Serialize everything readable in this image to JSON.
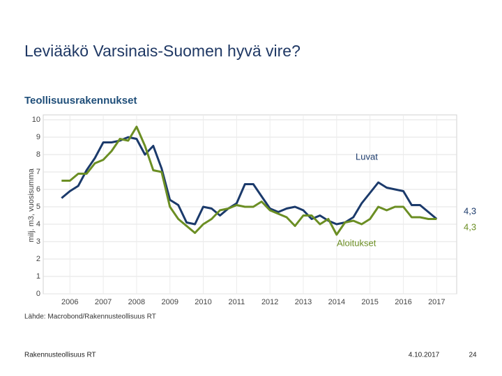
{
  "slide": {
    "title": "Leviääkö Varsinais-Suomen hyvä vire?",
    "footer_left": "Rakennusteollisuus RT",
    "footer_date": "4.10.2017",
    "page_number": "24"
  },
  "chart_data": {
    "type": "line",
    "title": "Teollisuusrakennukset",
    "y_label": "milj. m3, vuosisumma",
    "source": "Lähde: Macrobond/Rakennusteollisuus RT",
    "x": [
      2005.75,
      2006.0,
      2006.25,
      2006.5,
      2006.75,
      2007.0,
      2007.25,
      2007.5,
      2007.75,
      2008.0,
      2008.25,
      2008.5,
      2008.75,
      2009.0,
      2009.25,
      2009.5,
      2009.75,
      2010.0,
      2010.25,
      2010.5,
      2010.75,
      2011.0,
      2011.25,
      2011.5,
      2011.75,
      2012.0,
      2012.25,
      2012.5,
      2012.75,
      2013.0,
      2013.25,
      2013.5,
      2013.75,
      2014.0,
      2014.25,
      2014.5,
      2014.75,
      2015.0,
      2015.25,
      2015.5,
      2015.75,
      2016.0,
      2016.25,
      2016.5,
      2016.75,
      2017.0
    ],
    "series": [
      {
        "name": "Luvat",
        "color": "#1b3a6b",
        "end_label": "4,3",
        "values": [
          5.5,
          5.9,
          6.2,
          7.1,
          7.8,
          8.7,
          8.7,
          8.8,
          9.0,
          8.9,
          8.0,
          8.5,
          7.2,
          5.4,
          5.1,
          4.1,
          4.0,
          5.0,
          4.9,
          4.5,
          4.9,
          5.2,
          6.3,
          6.3,
          5.6,
          4.9,
          4.7,
          4.9,
          5.0,
          4.8,
          4.3,
          4.5,
          4.2,
          4.0,
          4.1,
          4.4,
          5.2,
          5.8,
          6.4,
          6.1,
          6.0,
          5.9,
          5.1,
          5.1,
          4.7,
          4.3
        ]
      },
      {
        "name": "Aloitukset",
        "color": "#6b8e23",
        "end_label": "4,3",
        "values": [
          6.5,
          6.5,
          6.9,
          6.9,
          7.5,
          7.7,
          8.2,
          8.9,
          8.8,
          9.6,
          8.5,
          7.1,
          7.0,
          5.0,
          4.3,
          3.9,
          3.5,
          4.0,
          4.3,
          4.8,
          4.9,
          5.1,
          5.0,
          5.0,
          5.3,
          4.8,
          4.6,
          4.4,
          3.9,
          4.5,
          4.5,
          4.0,
          4.3,
          3.4,
          4.1,
          4.2,
          4.0,
          4.3,
          5.0,
          4.8,
          5.0,
          5.0,
          4.4,
          4.4,
          4.3,
          4.3
        ]
      }
    ],
    "xlim": [
      2005.2,
      2017.6
    ],
    "xticks": [
      2006,
      2007,
      2008,
      2009,
      2010,
      2011,
      2012,
      2013,
      2014,
      2015,
      2016,
      2017
    ],
    "ylim": [
      0,
      10
    ],
    "yticks": [
      0,
      1,
      2,
      3,
      4,
      5,
      6,
      7,
      8,
      9,
      10
    ],
    "grid": true
  }
}
